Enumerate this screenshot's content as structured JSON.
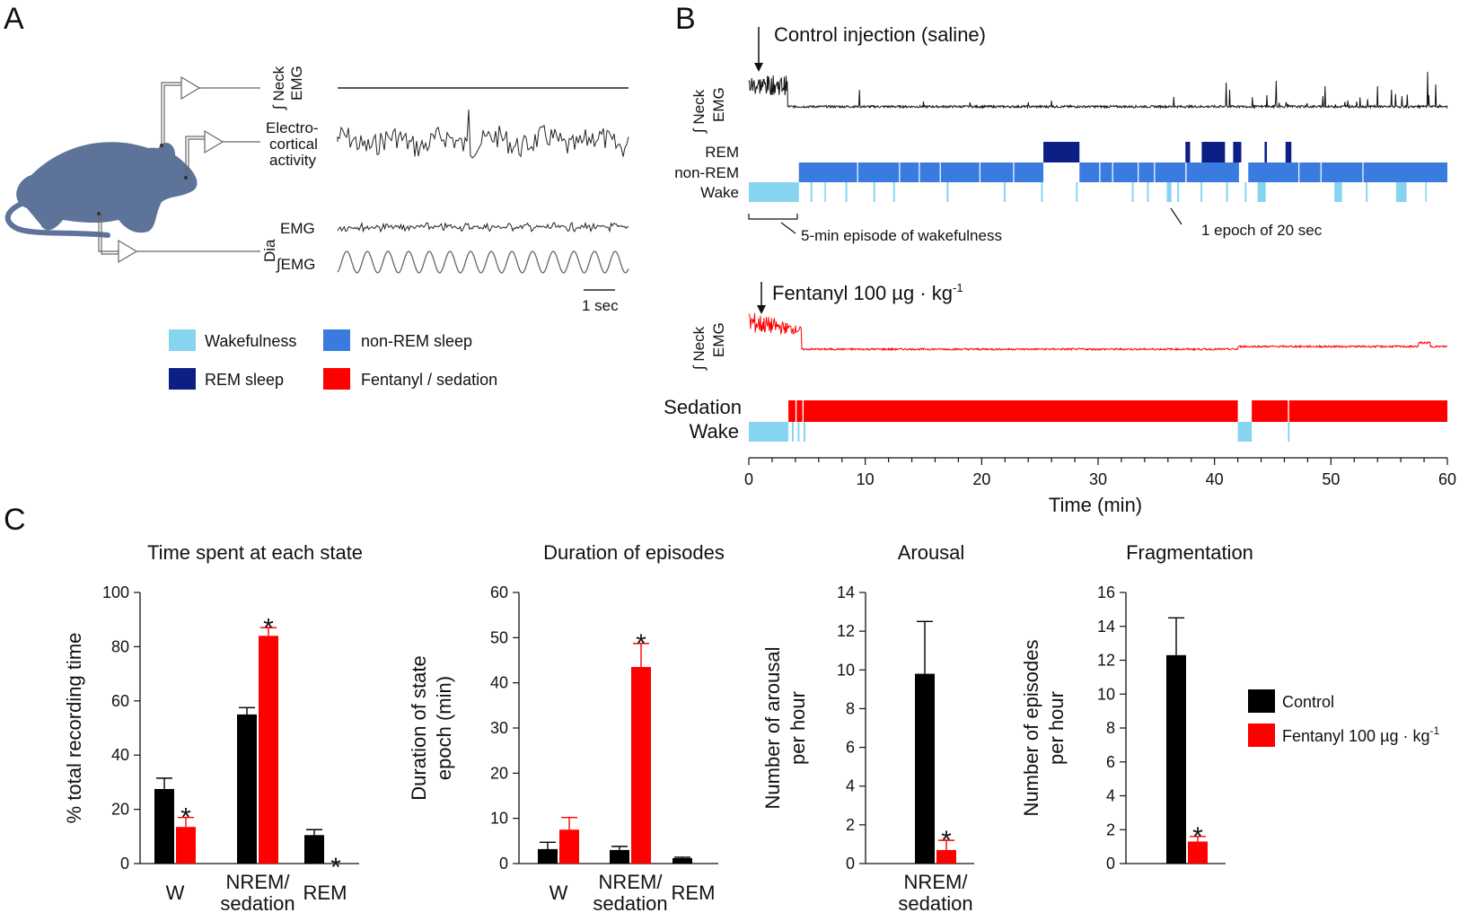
{
  "colors": {
    "wake": "#86d4f0",
    "nrem": "#3a7be0",
    "rem": "#0c1f84",
    "fentanyl": "#ff0000",
    "control": "#000000",
    "rat": "#5d7399",
    "trace_gray": "#555555"
  },
  "panel_a": {
    "letter": "A",
    "trace_labels": {
      "neck_integral": "∫ Neck",
      "neck_emg": "EMG",
      "ecog_1": "Electro-",
      "ecog_2": "cortical",
      "ecog_3": "activity",
      "dia": "Dia",
      "dia_emg": "EMG",
      "dia_int_emg": "∫EMG"
    },
    "scale_bar": "1 sec",
    "legend": [
      {
        "name": "Wakefulness",
        "color": "#86d4f0"
      },
      {
        "name": "non-REM sleep",
        "color": "#3a7be0"
      },
      {
        "name": "REM sleep",
        "color": "#0c1f84"
      },
      {
        "name": "Fentanyl / sedation",
        "color": "#ff0000"
      }
    ]
  },
  "panel_b": {
    "letter": "B",
    "control_title": "Control injection (saline)",
    "fentanyl_title": "Fentanyl 100 µg · kg",
    "fentanyl_sup": "-1",
    "neck_integral": "∫ Neck",
    "neck_emg": "EMG",
    "state_rem": "REM",
    "state_nrem": "non-REM",
    "state_wake": "Wake",
    "state_sedation": "Sedation",
    "annot_wake_episode": "5-min episode of wakefulness",
    "annot_epoch": "1 epoch of 20 sec",
    "x_label": "Time (min)",
    "x_ticks": [
      0,
      10,
      20,
      30,
      40,
      50,
      60
    ],
    "control_hypnogram": {
      "wake": [
        [
          0,
          4.3
        ],
        [
          5.3,
          5.45
        ],
        [
          6.5,
          6.6
        ],
        [
          8.3,
          8.45
        ],
        [
          10.7,
          10.85
        ],
        [
          12.4,
          12.55
        ],
        [
          17,
          17.15
        ],
        [
          21.9,
          22.05
        ],
        [
          25.1,
          25.25
        ],
        [
          28.1,
          28.25
        ],
        [
          32.9,
          33.05
        ],
        [
          34.2,
          34.35
        ],
        [
          35.9,
          36.3
        ],
        [
          36.8,
          36.95
        ],
        [
          38.8,
          38.95
        ],
        [
          41,
          41.15
        ],
        [
          42.6,
          42.75
        ],
        [
          43.7,
          44.4
        ],
        [
          50.3,
          50.95
        ],
        [
          53,
          53.15
        ],
        [
          55.6,
          56.5
        ],
        [
          58.1,
          58.2
        ]
      ],
      "nrem": [
        [
          4.3,
          25.3
        ],
        [
          28.4,
          37.5
        ],
        [
          37.6,
          42.1
        ],
        [
          42.9,
          60
        ]
      ],
      "rem": [
        [
          25.3,
          28.4
        ],
        [
          37.5,
          37.9
        ],
        [
          38.9,
          40.9
        ],
        [
          41.6,
          42.3
        ],
        [
          44.3,
          44.5
        ],
        [
          46.1,
          46.6
        ]
      ]
    },
    "fentanyl_hypnogram": {
      "wake": [
        [
          0,
          3.4
        ],
        [
          3.7,
          3.85
        ],
        [
          4.2,
          4.35
        ],
        [
          4.7,
          4.85
        ],
        [
          42,
          43.2
        ],
        [
          46.3,
          46.45
        ]
      ],
      "sedation": [
        [
          3.4,
          42
        ],
        [
          43.2,
          60
        ]
      ]
    }
  },
  "panel_c": {
    "letter": "C",
    "legend": [
      {
        "name": "Control",
        "color": "#000000"
      },
      {
        "name": "Fentanyl 100 µg · kg",
        "sup": "-1",
        "color": "#ff0000"
      }
    ]
  },
  "chart_data": [
    {
      "type": "bar",
      "title": "Time spent at each state",
      "ylabel": "% total recording time",
      "xlabel": "",
      "categories": [
        "W",
        "NREM/ sedation",
        "REM"
      ],
      "ylim": [
        0,
        100
      ],
      "yticks": [
        0,
        20,
        40,
        60,
        80,
        100
      ],
      "series": [
        {
          "name": "Control",
          "values": [
            27.5,
            55,
            10.5
          ],
          "errors": [
            4,
            2.5,
            2
          ]
        },
        {
          "name": "Fentanyl 100 µg · kg-1",
          "values": [
            13.5,
            84,
            0
          ],
          "errors": [
            3.5,
            3,
            0
          ]
        }
      ],
      "significance": [
        "*",
        "*",
        "*"
      ]
    },
    {
      "type": "bar",
      "title": "Duration of episodes",
      "ylabel": "Duration of state epoch (min)",
      "xlabel": "",
      "categories": [
        "W",
        "NREM/ sedation",
        "REM"
      ],
      "ylim": [
        0,
        60
      ],
      "yticks": [
        0,
        10,
        20,
        30,
        40,
        50,
        60
      ],
      "series": [
        {
          "name": "Control",
          "values": [
            3.2,
            3,
            1.2
          ],
          "errors": [
            1.5,
            0.8,
            0.2
          ]
        },
        {
          "name": "Fentanyl 100 µg · kg-1",
          "values": [
            7.5,
            43.5,
            0
          ],
          "errors": [
            2.7,
            5.2,
            0
          ]
        }
      ],
      "significance": [
        "",
        "*",
        ""
      ]
    },
    {
      "type": "bar",
      "title": "Arousal",
      "ylabel": "Number of arousal per hour",
      "xlabel": "",
      "categories": [
        "NREM/ sedation"
      ],
      "ylim": [
        0,
        14
      ],
      "yticks": [
        0,
        2,
        4,
        6,
        8,
        10,
        12,
        14
      ],
      "series": [
        {
          "name": "Control",
          "values": [
            9.8
          ],
          "errors": [
            2.7
          ]
        },
        {
          "name": "Fentanyl 100 µg · kg-1",
          "values": [
            0.7
          ],
          "errors": [
            0.5
          ]
        }
      ],
      "significance": [
        "*"
      ]
    },
    {
      "type": "bar",
      "title": "Fragmentation",
      "ylabel": "Number of episodes per hour",
      "xlabel": "",
      "categories": [
        ""
      ],
      "ylim": [
        0,
        16
      ],
      "yticks": [
        0,
        2,
        4,
        6,
        8,
        10,
        12,
        14,
        16
      ],
      "series": [
        {
          "name": "Control",
          "values": [
            12.3
          ],
          "errors": [
            2.2
          ]
        },
        {
          "name": "Fentanyl 100 µg · kg-1",
          "values": [
            1.3
          ],
          "errors": [
            0.3
          ]
        }
      ],
      "significance": [
        "*"
      ]
    }
  ]
}
